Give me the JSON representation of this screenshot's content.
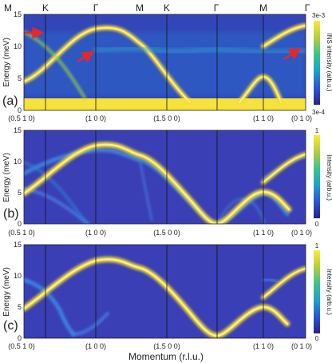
{
  "chart_data": [
    {
      "type": "heatmap",
      "panel_label": "(a)",
      "top_labels": [
        "M",
        "K",
        "Γ",
        "M",
        "K",
        "Γ",
        "M",
        "Γ"
      ],
      "ylabel": "Energy (meV)",
      "ylim": [
        0,
        15
      ],
      "yticks": [
        "0",
        "5",
        "10",
        "15"
      ],
      "colorbar_label": "INS intensity (arb.u.)",
      "colorbar_max": "3e-3",
      "colorbar_min": "3e-4",
      "annotation": "red arrows marking additional flat excitations near 12 meV and 9 meV"
    },
    {
      "type": "heatmap",
      "panel_label": "(b)",
      "ylabel": "Energy (meV)",
      "ylim": [
        0,
        15
      ],
      "yticks": [
        "0",
        "5",
        "10",
        "15"
      ],
      "colorbar_label": "Intensity (arb.u.)",
      "colorbar_max": "1",
      "colorbar_min": "0"
    },
    {
      "type": "heatmap",
      "panel_label": "(c)",
      "ylabel": "Energy (meV)",
      "ylim": [
        0,
        15
      ],
      "yticks": [
        "0",
        "5",
        "10",
        "15"
      ],
      "colorbar_label": "Intensity (arb.u.)",
      "colorbar_max": "1",
      "colorbar_min": "0"
    }
  ],
  "x_ticks": [
    "(0.5 1 0)",
    "(1 0 0)",
    "(1.5 0 0)",
    "(1 1 0)",
    "(0 1 0)"
  ],
  "xlabel": "Momentum (r.l.u.)",
  "colors": {
    "background": "#3a3fb5",
    "band": "#ffe433",
    "colormap": [
      "#2b1f8f",
      "#2a54d8",
      "#1aa3c8",
      "#3cc38a",
      "#b6cc3a",
      "#fbe93a"
    ]
  }
}
